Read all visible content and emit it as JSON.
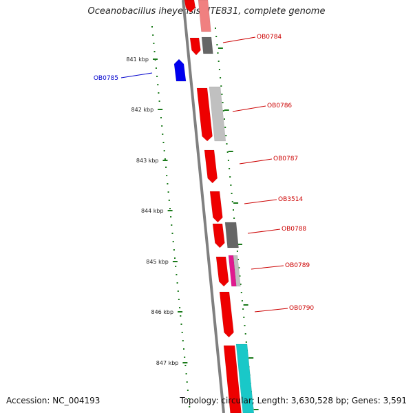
{
  "title": "Oceanobacillus iheyensis HTE831, complete genome",
  "footer": {
    "accession": "Accession: NC_004193",
    "summary": "Topology: circular; Length: 3,630,528 bp; Genes: 3,591"
  },
  "colors": {
    "backbone": "#808080",
    "tick": "#1a7a1a",
    "forward_gene": "#ee0000",
    "forward_label": "#cc0000",
    "reverse_gene": "#0000ee",
    "reverse_label": "#0000cc",
    "gray_feature": "#666666",
    "light_gray_feature": "#c0c0c0",
    "magenta_feature": "#e0198f",
    "cyan_feature": "#19c8c8",
    "pink_feature": "#f08080"
  },
  "ticks": [
    "841 kbp",
    "842 kbp",
    "843 kbp",
    "844 kbp",
    "845 kbp",
    "846 kbp",
    "847 kbp"
  ],
  "genes": [
    {
      "name": "OB0784",
      "strand": "+"
    },
    {
      "name": "OB0785",
      "strand": "-"
    },
    {
      "name": "OB0786",
      "strand": "+"
    },
    {
      "name": "OB0787",
      "strand": "+"
    },
    {
      "name": "OB3514",
      "strand": "+"
    },
    {
      "name": "OB0788",
      "strand": "+"
    },
    {
      "name": "OB0789",
      "strand": "+"
    },
    {
      "name": "OB0790",
      "strand": "+"
    }
  ]
}
